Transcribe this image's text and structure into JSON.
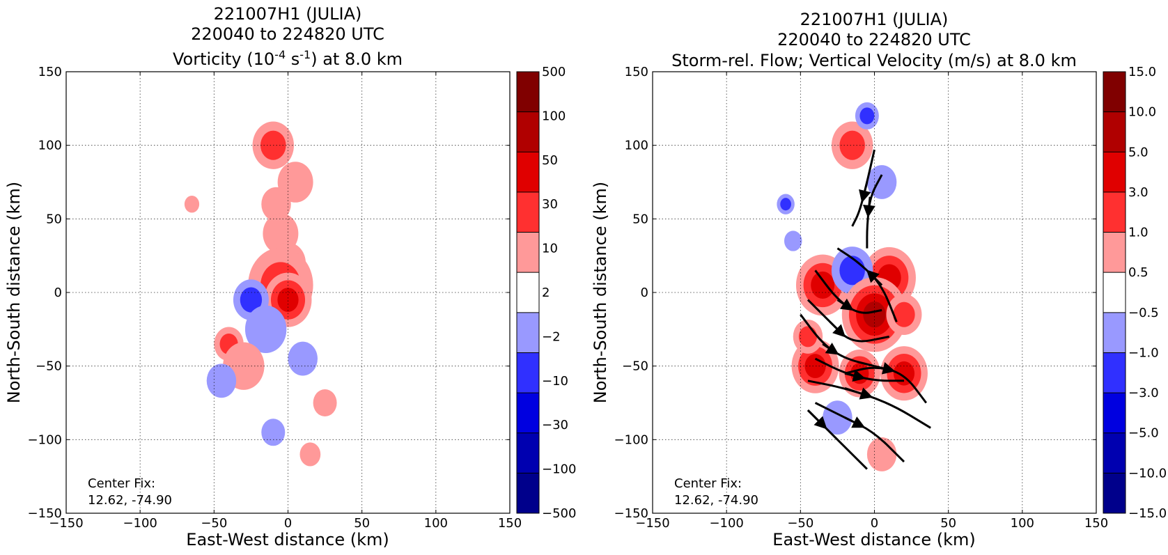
{
  "chart_data": [
    {
      "type": "heatmap",
      "title_lines": [
        "221007H1 (JULIA)",
        "220040 to 224820 UTC"
      ],
      "title_var": {
        "pre": "Vorticity (10",
        "exp": "-4",
        "mid": " s",
        "exp2": "-1",
        "post": ") at 8.0 km"
      },
      "xlabel": "East-West distance (km)",
      "ylabel": "North-South distance (km)",
      "xlim": [
        -150,
        150
      ],
      "ylim": [
        -150,
        150
      ],
      "xticks": [
        -150,
        -100,
        -50,
        0,
        50,
        100,
        150
      ],
      "yticks": [
        -150,
        -100,
        -50,
        0,
        50,
        100,
        150
      ],
      "xtick_labels": [
        "−150",
        "−100",
        "−50",
        "0",
        "50",
        "100",
        "150"
      ],
      "ytick_labels": [
        "−150",
        "−100",
        "−50",
        "0",
        "50",
        "100",
        "150"
      ],
      "grid": true,
      "annotation": [
        "Center Fix:",
        "12.62, -74.90"
      ],
      "colorbar": {
        "labels": [
          "−500",
          "−100",
          "−30",
          "−10",
          "−2",
          "2",
          "10",
          "30",
          "50",
          "100",
          "500"
        ],
        "colors": [
          "#00008b",
          "#0000b0",
          "#0000e0",
          "#3030ff",
          "#9999ff",
          "#ffffff",
          "#ff9999",
          "#ff3030",
          "#e00000",
          "#b00000",
          "#800000"
        ]
      },
      "field_patches": [
        {
          "x": -10,
          "y": 100,
          "r": 14,
          "level": 2,
          "sign": 1
        },
        {
          "x": 5,
          "y": 75,
          "r": 12,
          "level": 1,
          "sign": 1
        },
        {
          "x": -8,
          "y": 60,
          "r": 10,
          "level": 1,
          "sign": 1
        },
        {
          "x": -5,
          "y": 40,
          "r": 12,
          "level": 1,
          "sign": 1
        },
        {
          "x": 0,
          "y": 20,
          "r": 12,
          "level": 1,
          "sign": 1
        },
        {
          "x": -5,
          "y": 5,
          "r": 22,
          "level": 2,
          "sign": 1
        },
        {
          "x": 0,
          "y": -5,
          "r": 16,
          "level": 3,
          "sign": 1
        },
        {
          "x": -25,
          "y": -5,
          "r": 12,
          "level": 2,
          "sign": -1
        },
        {
          "x": -15,
          "y": -25,
          "r": 14,
          "level": 1,
          "sign": -1
        },
        {
          "x": -40,
          "y": -35,
          "r": 10,
          "level": 2,
          "sign": 1
        },
        {
          "x": -30,
          "y": -50,
          "r": 14,
          "level": 1,
          "sign": 1
        },
        {
          "x": -45,
          "y": -60,
          "r": 10,
          "level": 1,
          "sign": -1
        },
        {
          "x": 10,
          "y": -45,
          "r": 10,
          "level": 1,
          "sign": -1
        },
        {
          "x": 25,
          "y": -75,
          "r": 8,
          "level": 1,
          "sign": 1
        },
        {
          "x": -10,
          "y": -95,
          "r": 8,
          "level": 1,
          "sign": -1
        },
        {
          "x": 15,
          "y": -110,
          "r": 7,
          "level": 1,
          "sign": 1
        },
        {
          "x": -65,
          "y": 60,
          "r": 5,
          "level": 1,
          "sign": 1
        }
      ]
    },
    {
      "type": "heatmap",
      "title_lines": [
        "221007H1 (JULIA)",
        "220040 to 224820 UTC"
      ],
      "title_var": {
        "pre": "Storm-rel. Flow; Vertical Velocity (m/s) at 8.0 km",
        "exp": "",
        "mid": "",
        "exp2": "",
        "post": ""
      },
      "xlabel": "East-West distance (km)",
      "ylabel": "North-South distance (km)",
      "xlim": [
        -150,
        150
      ],
      "ylim": [
        -150,
        150
      ],
      "xticks": [
        -150,
        -100,
        -50,
        0,
        50,
        100,
        150
      ],
      "yticks": [
        -150,
        -100,
        -50,
        0,
        50,
        100,
        150
      ],
      "xtick_labels": [
        "−150",
        "−100",
        "−50",
        "0",
        "50",
        "100",
        "150"
      ],
      "ytick_labels": [
        "−150",
        "−100",
        "−50",
        "0",
        "50",
        "100",
        "150"
      ],
      "grid": true,
      "annotation": [
        "Center Fix:",
        "12.62, -74.90"
      ],
      "colorbar": {
        "labels": [
          "−15.0",
          "−10.0",
          "−5.0",
          "−3.0",
          "−1.0",
          "−0.5",
          "0.5",
          "1.0",
          "3.0",
          "5.0",
          "10.0",
          "15.0"
        ],
        "colors": [
          "#00008b",
          "#0000b0",
          "#0000e0",
          "#3030ff",
          "#9999ff",
          "#ffffff",
          "#ff9999",
          "#ff3030",
          "#e00000",
          "#b00000",
          "#800000"
        ]
      },
      "field_patches": [
        {
          "x": -15,
          "y": 100,
          "r": 14,
          "level": 2,
          "sign": 1
        },
        {
          "x": -5,
          "y": 120,
          "r": 8,
          "level": 2,
          "sign": -1
        },
        {
          "x": 5,
          "y": 75,
          "r": 10,
          "level": 1,
          "sign": -1
        },
        {
          "x": -35,
          "y": 5,
          "r": 18,
          "level": 3,
          "sign": 1
        },
        {
          "x": 10,
          "y": 10,
          "r": 18,
          "level": 3,
          "sign": 1
        },
        {
          "x": -15,
          "y": 15,
          "r": 14,
          "level": 2,
          "sign": -1
        },
        {
          "x": 0,
          "y": -15,
          "r": 22,
          "level": 4,
          "sign": 1
        },
        {
          "x": 20,
          "y": -15,
          "r": 12,
          "level": 2,
          "sign": 1
        },
        {
          "x": -40,
          "y": -50,
          "r": 16,
          "level": 3,
          "sign": 1
        },
        {
          "x": -10,
          "y": -55,
          "r": 14,
          "level": 3,
          "sign": 1
        },
        {
          "x": 20,
          "y": -55,
          "r": 16,
          "level": 3,
          "sign": 1
        },
        {
          "x": -25,
          "y": -85,
          "r": 10,
          "level": 1,
          "sign": -1
        },
        {
          "x": 5,
          "y": -110,
          "r": 10,
          "level": 1,
          "sign": 1
        },
        {
          "x": -60,
          "y": 60,
          "r": 6,
          "level": 2,
          "sign": -1
        },
        {
          "x": -55,
          "y": 35,
          "r": 6,
          "level": 1,
          "sign": -1
        },
        {
          "x": -45,
          "y": -30,
          "r": 10,
          "level": 2,
          "sign": 1
        }
      ],
      "streamlines": [
        [
          [
            0,
            97
          ],
          [
            -5,
            75
          ],
          [
            -10,
            55
          ],
          [
            -15,
            45
          ]
        ],
        [
          [
            5,
            80
          ],
          [
            -3,
            65
          ],
          [
            -5,
            45
          ],
          [
            -5,
            30
          ]
        ],
        [
          [
            -40,
            15
          ],
          [
            -25,
            -5
          ],
          [
            -10,
            -15
          ],
          [
            5,
            -12
          ]
        ],
        [
          [
            -45,
            -5
          ],
          [
            -30,
            -20
          ],
          [
            -15,
            -35
          ],
          [
            10,
            -30
          ]
        ],
        [
          [
            -50,
            -15
          ],
          [
            -35,
            -35
          ],
          [
            -20,
            -45
          ],
          [
            0,
            -50
          ]
        ],
        [
          [
            -40,
            -45
          ],
          [
            -20,
            -55
          ],
          [
            0,
            -60
          ],
          [
            20,
            -60
          ]
        ],
        [
          [
            -45,
            -60
          ],
          [
            -20,
            -65
          ],
          [
            10,
            -75
          ],
          [
            38,
            -92
          ]
        ],
        [
          [
            -40,
            -75
          ],
          [
            -20,
            -85
          ],
          [
            0,
            -95
          ],
          [
            20,
            -115
          ]
        ],
        [
          [
            -45,
            -80
          ],
          [
            -25,
            -100
          ],
          [
            -5,
            -120
          ]
        ],
        [
          [
            -20,
            -55
          ],
          [
            0,
            -50
          ],
          [
            20,
            -55
          ],
          [
            35,
            -75
          ]
        ],
        [
          [
            15,
            -20
          ],
          [
            5,
            5
          ],
          [
            -10,
            20
          ],
          [
            -25,
            30
          ]
        ]
      ]
    }
  ]
}
